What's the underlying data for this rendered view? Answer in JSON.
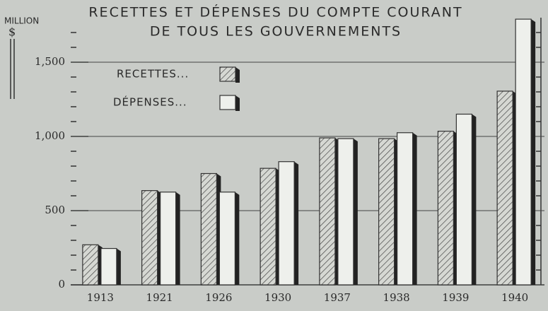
{
  "chart_data": {
    "type": "bar",
    "title_lines": [
      "RECETTES ET DÉPENSES DU COMPTE COURANT",
      "DE TOUS LES GOUVERNEMENTS"
    ],
    "y_unit_lines": [
      "MILLION",
      "$"
    ],
    "categories": [
      "1913",
      "1921",
      "1926",
      "1930",
      "1937",
      "1938",
      "1939",
      "1940"
    ],
    "series": [
      {
        "name": "RECETTES...",
        "color": "#d6d8d3",
        "pattern": "hatch",
        "values": [
          270,
          635,
          750,
          785,
          990,
          985,
          1035,
          1305
        ]
      },
      {
        "name": "DÉPENSES...",
        "color": "#eef0ec",
        "pattern": "none",
        "values": [
          245,
          625,
          625,
          830,
          985,
          1025,
          1150,
          1790
        ]
      }
    ],
    "ylim": [
      0,
      1800
    ],
    "yticks": [
      0,
      500,
      {
        "value": 1000,
        "label": "1,000"
      },
      {
        "value": 1500,
        "label": "1,500"
      }
    ],
    "yminor": [
      100,
      200,
      300,
      400,
      600,
      700,
      800,
      900,
      1100,
      1200,
      1300,
      1400,
      1600,
      1700
    ],
    "grid": true
  }
}
